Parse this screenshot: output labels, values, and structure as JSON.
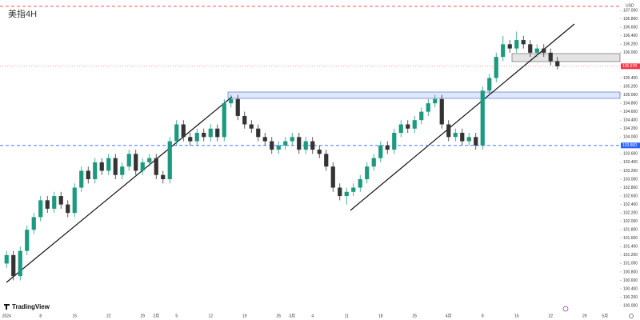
{
  "chart_data": {
    "type": "candlestick",
    "title": "美指4H",
    "currency": "USD",
    "brand": "TradingView",
    "categories": [
      "2024",
      null,
      null,
      null,
      null,
      "8",
      null,
      null,
      null,
      null,
      "15",
      null,
      null,
      null,
      null,
      "22",
      null,
      null,
      null,
      null,
      "29",
      null,
      "2月",
      null,
      null,
      "5",
      null,
      null,
      null,
      null,
      "12",
      null,
      null,
      null,
      null,
      "19",
      null,
      null,
      null,
      null,
      "26",
      null,
      "3月",
      null,
      null,
      "4",
      null,
      null,
      null,
      null,
      "11",
      null,
      null,
      null,
      null,
      "18",
      null,
      null,
      null,
      null,
      "25",
      null,
      null,
      null,
      null,
      "4月",
      null,
      null,
      null,
      null,
      "8",
      null,
      null,
      null,
      null,
      "15",
      null,
      null,
      null,
      null,
      "22",
      null,
      null,
      null,
      null,
      "29",
      null,
      null,
      "5月",
      null
    ],
    "series": {
      "open": [
        101.0,
        101.2,
        100.7,
        101.3,
        101.8,
        102.1,
        102.5,
        102.3,
        102.6,
        102.4,
        102.2,
        102.8,
        103.2,
        103.0,
        103.4,
        103.2,
        103.5,
        103.1,
        103.3,
        103.6,
        103.2,
        103.4,
        103.5,
        103.1,
        103.0,
        103.9,
        104.3,
        104.0,
        103.9,
        104.1,
        104.0,
        104.2,
        104.0,
        104.8,
        104.9,
        104.5,
        104.3,
        104.2,
        104.0,
        103.9,
        103.7,
        103.8,
        103.9,
        104.0,
        103.7,
        103.9,
        103.7,
        103.6,
        103.3,
        102.8,
        102.6,
        102.7,
        102.8,
        103.0,
        103.3,
        103.5,
        103.8,
        103.7,
        104.1,
        104.3,
        104.2,
        104.4,
        104.6,
        104.8,
        104.9,
        104.3,
        104.0,
        104.1,
        103.9,
        104.0,
        103.8,
        105.1,
        105.4,
        105.9,
        106.2,
        106.1,
        106.3,
        106.2,
        106.0,
        106.1,
        106.0,
        105.8,
        null,
        null,
        null,
        null,
        null,
        null,
        null,
        null
      ],
      "high": [
        101.3,
        101.3,
        101.4,
        101.9,
        102.2,
        102.6,
        102.6,
        102.7,
        102.7,
        102.5,
        102.9,
        103.3,
        103.3,
        103.5,
        103.5,
        103.6,
        103.6,
        103.4,
        103.7,
        103.7,
        103.5,
        103.6,
        103.6,
        103.2,
        104.0,
        104.4,
        104.4,
        104.1,
        104.2,
        104.2,
        104.3,
        104.3,
        104.9,
        105.0,
        105.0,
        104.6,
        104.4,
        104.3,
        104.1,
        104.0,
        103.9,
        104.0,
        104.1,
        104.1,
        104.0,
        104.0,
        103.8,
        103.7,
        103.4,
        102.9,
        102.8,
        102.9,
        103.1,
        103.4,
        103.6,
        103.9,
        103.9,
        104.2,
        104.4,
        104.4,
        104.5,
        104.7,
        104.9,
        105.0,
        105.0,
        104.4,
        104.2,
        104.2,
        104.1,
        104.1,
        105.2,
        105.5,
        106.0,
        106.4,
        106.3,
        106.5,
        106.4,
        106.3,
        106.2,
        106.2,
        106.1,
        105.9,
        null,
        null,
        null,
        null,
        null,
        null,
        null,
        null
      ],
      "low": [
        100.9,
        100.6,
        100.6,
        101.2,
        101.7,
        102.0,
        102.2,
        102.2,
        102.3,
        102.1,
        102.1,
        102.7,
        102.9,
        102.9,
        103.1,
        103.1,
        103.0,
        103.0,
        103.2,
        103.1,
        103.1,
        103.3,
        103.0,
        102.9,
        102.9,
        103.8,
        103.9,
        103.8,
        103.8,
        103.9,
        103.9,
        103.9,
        103.9,
        104.7,
        104.4,
        104.2,
        104.1,
        103.9,
        103.8,
        103.6,
        103.6,
        103.7,
        103.8,
        103.6,
        103.6,
        103.6,
        103.5,
        103.2,
        102.7,
        102.5,
        102.4,
        102.6,
        102.7,
        102.9,
        103.2,
        103.4,
        103.6,
        103.6,
        104.0,
        104.1,
        104.1,
        104.3,
        104.5,
        104.7,
        104.2,
        103.9,
        103.9,
        103.8,
        103.8,
        103.7,
        103.7,
        105.0,
        105.3,
        105.8,
        106.0,
        106.0,
        106.1,
        105.9,
        105.9,
        105.9,
        105.7,
        105.6,
        null,
        null,
        null,
        null,
        null,
        null,
        null,
        null
      ],
      "close": [
        101.2,
        100.7,
        101.3,
        101.8,
        102.1,
        102.5,
        102.3,
        102.6,
        102.4,
        102.2,
        102.8,
        103.2,
        103.0,
        103.4,
        103.2,
        103.5,
        103.1,
        103.3,
        103.6,
        103.2,
        103.4,
        103.5,
        103.1,
        103.0,
        103.9,
        104.3,
        104.0,
        103.9,
        104.1,
        104.0,
        104.2,
        104.0,
        104.8,
        104.9,
        104.5,
        104.3,
        104.2,
        104.0,
        103.9,
        103.7,
        103.8,
        103.9,
        104.0,
        103.7,
        103.9,
        103.7,
        103.6,
        103.3,
        102.8,
        102.6,
        102.7,
        102.8,
        103.0,
        103.3,
        103.5,
        103.8,
        103.7,
        104.1,
        104.3,
        104.2,
        104.4,
        104.6,
        104.8,
        104.9,
        104.3,
        104.0,
        104.1,
        103.9,
        104.0,
        103.8,
        105.1,
        105.4,
        105.9,
        106.2,
        106.1,
        106.3,
        106.2,
        106.0,
        106.1,
        106.0,
        105.8,
        105.678,
        null,
        null,
        null,
        null,
        null,
        null,
        null,
        null
      ]
    },
    "up_color": "#1b9a80",
    "down_color": "#333333",
    "ylim": [
      99.85,
      107.25
    ],
    "yticks": [
      {
        "value": 100,
        "label": "100.000"
      },
      {
        "value": 100.2,
        "label": "100.200"
      },
      {
        "value": 100.4,
        "label": "100.400"
      },
      {
        "value": 100.6,
        "label": "100.600"
      },
      {
        "value": 100.8,
        "label": "100.800"
      },
      {
        "value": 101,
        "label": "101.000"
      },
      {
        "value": 101.2,
        "label": "101.200"
      },
      {
        "value": 101.4,
        "label": "101.400"
      },
      {
        "value": 101.6,
        "label": "101.600"
      },
      {
        "value": 101.8,
        "label": "101.800"
      },
      {
        "value": 102,
        "label": "102.000"
      },
      {
        "value": 102.2,
        "label": "102.200"
      },
      {
        "value": 102.4,
        "label": "102.400"
      },
      {
        "value": 102.6,
        "label": "102.600"
      },
      {
        "value": 102.8,
        "label": "102.800"
      },
      {
        "value": 103,
        "label": "103.000"
      },
      {
        "value": 103.2,
        "label": "103.200"
      },
      {
        "value": 103.4,
        "label": "103.400"
      },
      {
        "value": 103.6,
        "label": "103.600"
      },
      {
        "value": 104,
        "label": "104.000"
      },
      {
        "value": 104.2,
        "label": "104.200"
      },
      {
        "value": 104.4,
        "label": "104.400"
      },
      {
        "value": 104.6,
        "label": "104.600"
      },
      {
        "value": 104.8,
        "label": "104.800"
      },
      {
        "value": 105,
        "label": "105.000"
      },
      {
        "value": 105.2,
        "label": "105.200"
      },
      {
        "value": 105.4,
        "label": "105.400"
      },
      {
        "value": 106,
        "label": "106.000"
      },
      {
        "value": 106.2,
        "label": "106.200"
      },
      {
        "value": 106.4,
        "label": "106.400"
      },
      {
        "value": 106.6,
        "label": "106.600"
      },
      {
        "value": 106.8,
        "label": "106.800"
      },
      {
        "value": 107,
        "label": "107.000"
      }
    ],
    "last_price": 105.678,
    "last_price_color": "#f23645",
    "levels": [
      {
        "value": 107.1,
        "color": "#f23645"
      },
      {
        "value": 103.8,
        "label": "103.800",
        "color": "#2962ff"
      }
    ]
  }
}
